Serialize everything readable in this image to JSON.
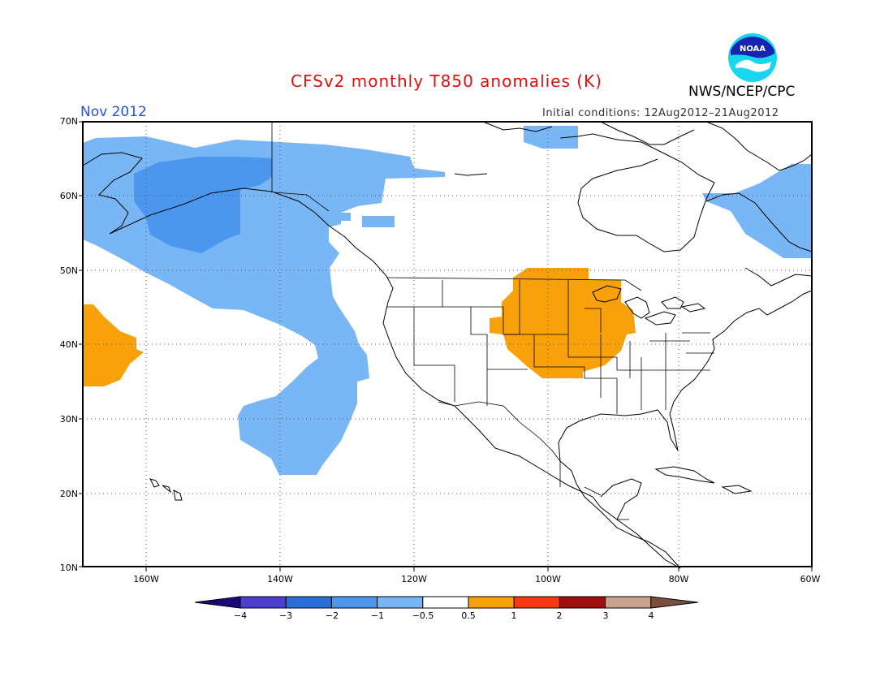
{
  "title": "CFSv2 monthly T850 anomalies (K)",
  "month_label": "Nov 2012",
  "agency": "NWS/NCEP/CPC",
  "logo_text": "NOAA",
  "initial_conditions": "Initial conditions: 12Aug2012–21Aug2012",
  "lat_labels": [
    "70N",
    "60N",
    "50N",
    "40N",
    "30N",
    "20N",
    "10N"
  ],
  "lon_labels": [
    "160W",
    "140W",
    "120W",
    "100W",
    "80W",
    "60W"
  ],
  "colorbar": {
    "ticks": [
      "−4",
      "−3",
      "−2",
      "−1",
      "−0.5",
      "0.5",
      "1",
      "2",
      "3",
      "4"
    ],
    "colors": [
      "#1a0a78",
      "#4a3fcf",
      "#2a6fd8",
      "#4b97ee",
      "#78b6f5",
      "#ffffff",
      "#f9a10a",
      "#f53a10",
      "#a00e0e",
      "#c9a290",
      "#7c4e3c"
    ]
  },
  "chart_data": {
    "type": "heatmap",
    "variable": "T850 anomalies (K)",
    "region": {
      "lon_range": [
        -172,
        -60
      ],
      "lat_range": [
        10,
        70
      ]
    },
    "anomaly_regions": [
      {
        "category": "-1 to -0.5",
        "area": "Alaska, Gulf of Alaska and NE Pacific extending south to ~23N off Baja"
      },
      {
        "category": "-2 to -1",
        "area": "Interior Alaska / Bering coast"
      },
      {
        "category": "-1 to -0.5",
        "area": "Labrador / NE Canada (60-70W, 51-64N)"
      },
      {
        "category": "-1 to -0.5",
        "area": "Arctic islands near 68N, 98W"
      },
      {
        "category": "0.5 to 1",
        "area": "Northern Great Plains and Upper Midwest (88-108W, 36-50N)"
      },
      {
        "category": "0.5 to 1",
        "area": "Central Pacific west of 160W (32-42N)"
      }
    ]
  }
}
